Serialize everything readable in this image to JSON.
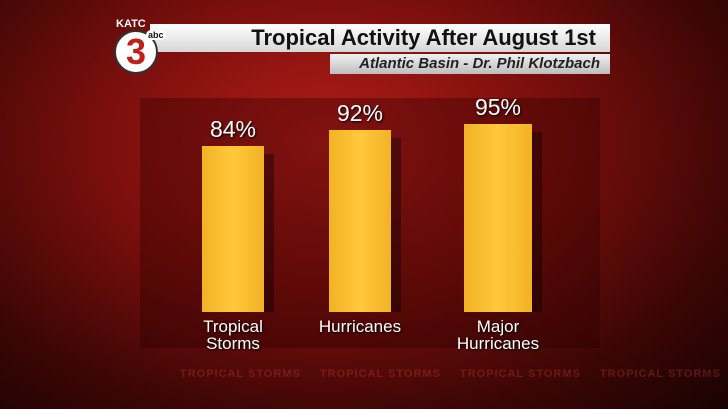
{
  "chart_data": {
    "type": "bar",
    "title": "Tropical Activity After August 1st",
    "subtitle": "Atlantic Basin - Dr. Phil Klotzbach",
    "logo": {
      "station": "KATC",
      "channel": "3",
      "network": "abc"
    },
    "background_text": "TROPICAL STORMS",
    "categories": [
      "Tropical Storms",
      "Hurricanes",
      "Major Hurricanes"
    ],
    "values": [
      84,
      92,
      95
    ],
    "value_labels": [
      "84%",
      "92%",
      "95%"
    ],
    "color": "#f2b226"
  }
}
